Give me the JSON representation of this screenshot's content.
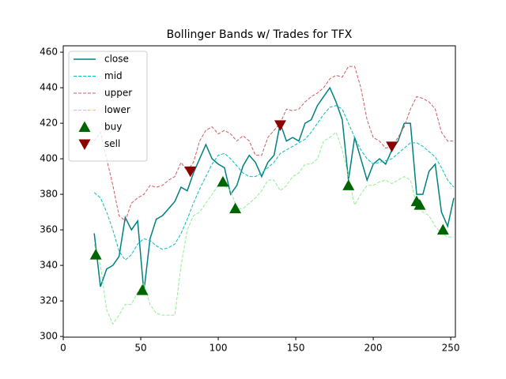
{
  "chart_data": {
    "type": "line",
    "title": "Bollinger Bands w/ Trades for TFX",
    "x": [
      20,
      24,
      28,
      32,
      36,
      40,
      44,
      48,
      52,
      56,
      60,
      64,
      68,
      72,
      76,
      80,
      84,
      88,
      92,
      96,
      100,
      104,
      108,
      112,
      116,
      120,
      124,
      128,
      132,
      136,
      140,
      144,
      148,
      152,
      156,
      160,
      164,
      168,
      172,
      176,
      180,
      184,
      188,
      192,
      196,
      200,
      204,
      208,
      212,
      216,
      220,
      224,
      228,
      232,
      236,
      240,
      244,
      248,
      252
    ],
    "series": [
      {
        "name": "close",
        "color": "#008080",
        "dashed": false,
        "values": [
          358,
          328,
          338,
          340,
          345,
          367,
          360,
          365,
          325,
          355,
          366,
          368,
          372,
          376,
          384,
          382,
          392,
          400,
          408,
          400,
          397,
          395,
          380,
          385,
          396,
          402,
          398,
          390,
          398,
          402,
          420,
          410,
          412,
          410,
          420,
          422,
          430,
          435,
          440,
          432,
          422,
          388,
          412,
          400,
          388,
          397,
          400,
          397,
          405,
          410,
          420,
          420,
          380,
          380,
          393,
          397,
          370,
          362,
          378
        ]
      },
      {
        "name": "mid",
        "color": "#00bfbf",
        "dashed": true,
        "values": [
          381,
          378,
          370,
          360,
          348,
          343,
          346,
          352,
          355,
          354,
          351,
          349,
          350,
          352,
          358,
          366,
          375,
          383,
          390,
          397,
          402,
          403,
          400,
          396,
          392,
          390,
          390,
          392,
          395,
          398,
          403,
          405,
          407,
          409,
          411,
          415,
          420,
          425,
          429,
          430,
          428,
          420,
          412,
          405,
          400,
          397,
          398,
          399,
          400,
          403,
          406,
          409,
          409,
          407,
          404,
          401,
          395,
          388,
          384
        ]
      },
      {
        "name": "upper",
        "color": "#cd5c5c",
        "dashed": true,
        "values": [
          410,
          415,
          400,
          385,
          368,
          365,
          375,
          378,
          380,
          385,
          384,
          385,
          388,
          390,
          398,
          393,
          398,
          410,
          416,
          418,
          414,
          416,
          414,
          410,
          413,
          410,
          402,
          402,
          412,
          416,
          420,
          428,
          427,
          428,
          432,
          435,
          437,
          440,
          445,
          447,
          446,
          452,
          452,
          440,
          422,
          412,
          410,
          406,
          407,
          412,
          418,
          428,
          435,
          434,
          432,
          428,
          415,
          410,
          410
        ]
      },
      {
        "name": "lower",
        "color": "#90ee90",
        "dashed": true,
        "values": [
          352,
          340,
          315,
          307,
          312,
          318,
          318,
          325,
          330,
          318,
          313,
          312,
          312,
          312,
          340,
          360,
          368,
          370,
          375,
          380,
          385,
          385,
          382,
          372,
          372,
          375,
          378,
          382,
          388,
          388,
          382,
          385,
          390,
          392,
          397,
          397,
          400,
          410,
          412,
          415,
          405,
          390,
          374,
          380,
          385,
          385,
          387,
          388,
          386,
          388,
          390,
          388,
          374,
          370,
          368,
          362,
          358,
          356,
          356
        ]
      },
      {
        "name": "buy",
        "color": "#006400",
        "marker": "triangle-up",
        "x": [
          21,
          51,
          103,
          111,
          184,
          228,
          230,
          245
        ],
        "values": [
          346,
          326,
          387,
          372,
          385,
          376,
          374,
          360
        ]
      },
      {
        "name": "sell",
        "color": "#8b0000",
        "marker": "triangle-down",
        "x": [
          82,
          140,
          212
        ],
        "values": [
          393,
          419,
          407
        ]
      }
    ],
    "xlim": [
      0,
      253
    ],
    "xticks": [
      0,
      50,
      100,
      150,
      200,
      250
    ],
    "ylim": [
      299.6,
      463.6
    ],
    "yticks": [
      300,
      320,
      340,
      360,
      380,
      400,
      420,
      440,
      460
    ],
    "legend": "upper left"
  }
}
